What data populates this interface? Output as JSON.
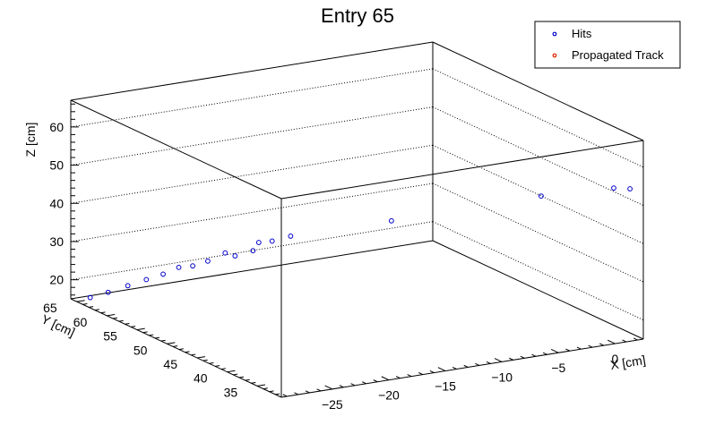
{
  "chart_data": {
    "type": "scatter",
    "projection": "3d",
    "title": "Entry 65",
    "legend": {
      "placement": "top-right",
      "entries": [
        {
          "name": "Hits",
          "color": "#0000cc",
          "marker": "open-circle"
        },
        {
          "name": "Propagated Track",
          "color": "#dd2200",
          "marker": "open-circle"
        }
      ]
    },
    "axes": {
      "x": {
        "label": "X [cm]",
        "range": [
          -29.5,
          2.5
        ],
        "ticks": [
          -25,
          -20,
          -15,
          -10,
          -5,
          0
        ],
        "tick_labels": [
          "−25",
          "−20",
          "−15",
          "−10",
          "−5",
          "0"
        ]
      },
      "y": {
        "label": "Y [cm]",
        "range": [
          31,
          66
        ],
        "ticks": [
          35,
          40,
          45,
          50,
          55,
          60,
          65
        ],
        "tick_labels": [
          "35",
          "40",
          "45",
          "50",
          "55",
          "60",
          "65"
        ]
      },
      "z": {
        "label": "Z [cm]",
        "range": [
          15,
          67
        ],
        "ticks": [
          20,
          30,
          40,
          50,
          60
        ],
        "tick_labels": [
          "20",
          "30",
          "40",
          "50",
          "60"
        ]
      }
    },
    "grid": true,
    "series": [
      {
        "name": "Hits",
        "color": "#0000cc",
        "points": [
          {
            "x": -28.9,
            "y": 63.9,
            "z": 16.6
          },
          {
            "x": -27.9,
            "y": 62.8,
            "z": 18.3
          },
          {
            "x": -26.8,
            "y": 61.6,
            "z": 20.4
          },
          {
            "x": -25.8,
            "y": 60.4,
            "z": 22.4
          },
          {
            "x": -24.9,
            "y": 59.3,
            "z": 24.2
          },
          {
            "x": -24.1,
            "y": 58.2,
            "z": 26.4
          },
          {
            "x": -23.4,
            "y": 57.2,
            "z": 27.2
          },
          {
            "x": -22.6,
            "y": 56.2,
            "z": 28.8
          },
          {
            "x": -21.7,
            "y": 55.0,
            "z": 31.4
          },
          {
            "x": -21.2,
            "y": 54.3,
            "z": 30.9
          },
          {
            "x": -20.2,
            "y": 53.2,
            "z": 32.6
          },
          {
            "x": -19.9,
            "y": 52.8,
            "z": 34.9
          },
          {
            "x": -19.2,
            "y": 51.9,
            "z": 35.6
          },
          {
            "x": -18.2,
            "y": 50.7,
            "z": 37.3
          },
          {
            "x": -12.8,
            "y": 44.1,
            "z": 43.6
          },
          {
            "x": -4.3,
            "y": 35.2,
            "z": 52.6
          },
          {
            "x": 0.1,
            "y": 31.4,
            "z": 55.4
          },
          {
            "x": 1.0,
            "y": 30.4,
            "z": 55.5
          }
        ]
      },
      {
        "name": "Propagated Track",
        "color": "#dd2200",
        "points": []
      }
    ]
  }
}
